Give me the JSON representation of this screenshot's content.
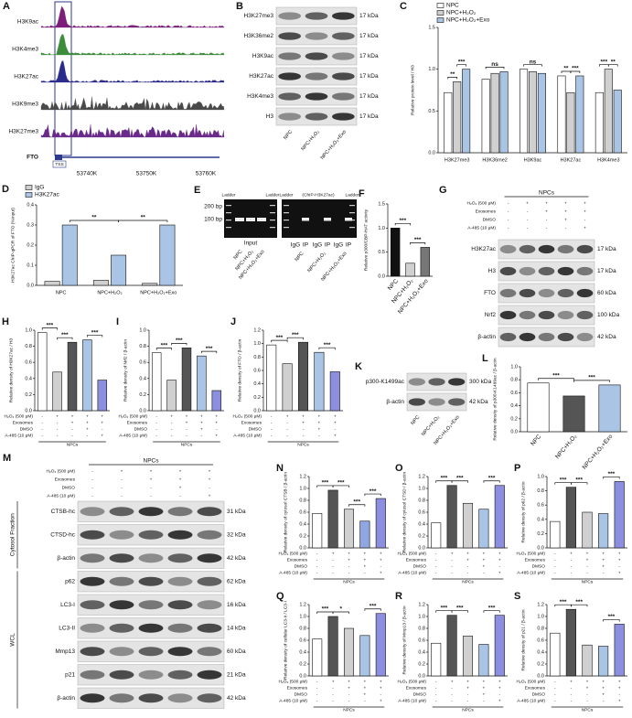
{
  "tracks": {
    "letter": "A",
    "tracks": [
      {
        "name": "H3K9ac",
        "color": "#7b1f7b"
      },
      {
        "name": "H3K4me3",
        "color": "#3c8c3c"
      },
      {
        "name": "H3K27ac",
        "color": "#2b2b8c"
      },
      {
        "name": "H3K9me3",
        "color": "#4a4a4a"
      },
      {
        "name": "H3K27me3",
        "color": "#6a2a8a"
      }
    ],
    "gene": "FTO",
    "tss": "TSS",
    "coords": [
      "53740K",
      "53750K",
      "53760K"
    ]
  },
  "blots": [
    {
      "letter": "B",
      "sections": [
        {
          "rows": [
            {
              "label": "H3K27me3",
              "kda": "17 kDa"
            },
            {
              "label": "H3K36me2",
              "kda": "17 kDa"
            },
            {
              "label": "H3K9ac",
              "kda": "17 kDa"
            },
            {
              "label": "H3K27ac",
              "kda": "17 kDa"
            },
            {
              "label": "H3K4me3",
              "kda": "17 kDa"
            },
            {
              "label": "H3",
              "kda": "17 kDa"
            }
          ]
        }
      ],
      "lanes": [
        "NPC",
        "NPC+H₂O₂",
        "NPC+H₂O₂+Exo"
      ]
    },
    {
      "letter": "G",
      "sections": [
        {
          "rows": [
            {
              "label": "H3K27ac",
              "kda": "17 kDa"
            },
            {
              "label": "H3",
              "kda": "17 kDa"
            },
            {
              "label": "FTO",
              "kda": "60 kDa"
            },
            {
              "label": "Nrf2",
              "kda": "100 kDa"
            },
            {
              "label": "β-actin",
              "kda": "42 kDa"
            }
          ]
        }
      ]
    },
    {
      "letter": "K",
      "sections": [
        {
          "rows": [
            {
              "label": "p300-K1499ac",
              "kda": "300 kDa"
            },
            {
              "label": "β-actin",
              "kda": "42 kDa"
            }
          ]
        }
      ],
      "lanes": [
        "NPC",
        "NPC+H₂O₂",
        "NPC+H₂O₂+Exo"
      ]
    },
    {
      "letter": "M",
      "sections": [
        {
          "label": "Cytosol Fraction",
          "rows": [
            {
              "label": "CTSB-hc",
              "kda": "31 kDa"
            },
            {
              "label": "CTSD-hc",
              "kda": "32 kDa"
            },
            {
              "label": "β-actin",
              "kda": "42 kDa"
            }
          ]
        },
        {
          "label": "WCL",
          "rows": [
            {
              "label": "p62",
              "kda": "62 kDa"
            },
            {
              "label": "LC3-I",
              "kda": "16 kDa"
            },
            {
              "label": "LC3-II",
              "kda": "14 kDa"
            },
            {
              "label": "Mmp13",
              "kda": "60 kDa"
            },
            {
              "label": "p21",
              "kda": "21 kDa"
            },
            {
              "label": "β-actin",
              "kda": "42 kDa"
            }
          ]
        }
      ]
    }
  ],
  "gel": {
    "letter": "E",
    "markers": [
      "200 bp",
      "100 bp"
    ],
    "ladder": "Ladder",
    "input": "Input",
    "chip": "(ChIP-H3K27ac)",
    "lanes": [
      "IgG",
      "IP",
      "IgG",
      "IP",
      "IgG",
      "IP"
    ],
    "groups": [
      "NPC",
      "NPC+H₂O₂",
      "NPC+H₂O₂+Exo"
    ]
  },
  "conditions": {
    "group": "NPCs",
    "rows": [
      {
        "label": "H₂O₂ (500 μM)",
        "signs": [
          "-",
          "+",
          "+",
          "+",
          "+"
        ]
      },
      {
        "label": "Exosomes",
        "signs": [
          "-",
          "-",
          "+",
          "+",
          "+"
        ]
      },
      {
        "label": "DMSO",
        "signs": [
          "-",
          "-",
          "-",
          "+",
          "-"
        ]
      },
      {
        "label": "A-485 (10 μM)",
        "signs": [
          "-",
          "-",
          "-",
          "-",
          "+"
        ]
      }
    ]
  },
  "chart_data": [
    {
      "type": "bar",
      "letter": "C",
      "ylabel": "Relative protein level / H3",
      "categories": [
        "H3K27me3",
        "H3K36me2",
        "H3K9ac",
        "H3K27ac",
        "H3K4me3"
      ],
      "series": [
        {
          "name": "NPC",
          "color": "#ffffff",
          "values": [
            0.72,
            0.88,
            1.0,
            0.92,
            0.72
          ]
        },
        {
          "name": "NPC+H₂O₂",
          "color": "#d0d0d0",
          "values": [
            0.85,
            0.95,
            0.97,
            0.72,
            1.0
          ]
        },
        {
          "name": "NPC+H₂O₂+Exo",
          "color": "#a9c4e4",
          "values": [
            1.0,
            0.97,
            0.95,
            0.92,
            0.75
          ]
        }
      ],
      "ylim": [
        0,
        1.5
      ],
      "yticks": [
        {
          "value": 0,
          "label": "0.0"
        },
        0.5,
        {
          "value": 1,
          "label": "1.0"
        },
        1.5
      ],
      "annotations": [
        "**",
        "***",
        "ns",
        "ns",
        "**",
        "***",
        "***",
        "**"
      ]
    },
    {
      "type": "bar",
      "letter": "D",
      "ylabel": "H3K27ac ChIP-qPCR of FTO (%Input)",
      "categories": [
        "NPC",
        "NPC+H₂O₂",
        "NPC+H₂O₂+Exo"
      ],
      "series": [
        {
          "name": "IgG",
          "color": "#d0d0d0",
          "values": [
            0.02,
            0.025,
            0.01
          ]
        },
        {
          "name": "H3K27ac",
          "color": "#a9c4e4",
          "values": [
            0.3,
            0.15,
            0.3
          ]
        }
      ],
      "ylim": [
        0,
        0.4
      ],
      "yticks": [
        {
          "value": 0,
          "label": "0.0"
        },
        0.1,
        0.2,
        0.3,
        0.4
      ],
      "annotations": [
        "**",
        "**"
      ]
    },
    {
      "type": "bar",
      "letter": "F",
      "ylabel": "Relative p300/CBP-HAT activity",
      "categories": [
        "NPC",
        "NPC+H₂O₂",
        "NPC+H₂O₂+Exo"
      ],
      "values": [
        1.0,
        0.27,
        0.6
      ],
      "colors": [
        "#111111",
        "#d0d0d0",
        "#777777"
      ],
      "ylim": [
        0,
        1.5
      ],
      "yticks": [
        {
          "value": 0,
          "label": "0.0"
        },
        0.5,
        {
          "value": 1,
          "label": "1.0"
        },
        1.5
      ],
      "annotations": [
        "***",
        "***"
      ]
    },
    {
      "type": "bar",
      "letter": "H",
      "ylabel": "Relative density of H3K27ac / H3",
      "values": [
        0.97,
        0.48,
        0.85,
        0.88,
        0.38
      ],
      "colors": [
        "#ffffff",
        "#d0d0d0",
        "#555555",
        "#a9c4e4",
        "#8c8ee0"
      ],
      "ylim": [
        0,
        1.0
      ],
      "yticks": [
        {
          "value": 0,
          "label": "0.0"
        },
        0.2,
        0.4,
        0.6,
        0.8,
        {
          "value": 1,
          "label": "1.0"
        }
      ],
      "annotations": [
        "***",
        "***",
        "***"
      ]
    },
    {
      "type": "bar",
      "letter": "I",
      "ylabel": "Relative density of Nrf2 / β-actin",
      "values": [
        0.72,
        0.38,
        0.78,
        0.68,
        0.25
      ],
      "colors": [
        "#ffffff",
        "#d0d0d0",
        "#555555",
        "#a9c4e4",
        "#8c8ee0"
      ],
      "ylim": [
        0,
        1.0
      ],
      "yticks": [
        {
          "value": 0,
          "label": "0.0"
        },
        0.2,
        0.4,
        0.6,
        0.8,
        {
          "value": 1,
          "label": "1.0"
        }
      ],
      "annotations": [
        "***",
        "***",
        "***"
      ]
    },
    {
      "type": "bar",
      "letter": "J",
      "ylabel": "Relative density of FTO / β-actin",
      "values": [
        0.98,
        0.7,
        1.02,
        0.87,
        0.58
      ],
      "colors": [
        "#ffffff",
        "#d0d0d0",
        "#555555",
        "#a9c4e4",
        "#8c8ee0"
      ],
      "ylim": [
        0,
        1.2
      ],
      "yticks": [
        {
          "value": 0,
          "label": "0.0"
        },
        0.2,
        0.4,
        0.6,
        0.8,
        {
          "value": 1,
          "label": "1.0"
        },
        1.2
      ],
      "annotations": [
        "***",
        "***",
        "***"
      ]
    },
    {
      "type": "bar",
      "letter": "L",
      "ylabel": "Relative density of p300-K1499ac / β-actin",
      "categories": [
        "NPC",
        "NPC+H₂O₂",
        "NPC+H₂O₂+Exo"
      ],
      "values": [
        0.75,
        0.55,
        0.72
      ],
      "colors": [
        "#ffffff",
        "#555555",
        "#a9c4e4"
      ],
      "ylim": [
        0,
        1.0
      ],
      "yticks": [
        {
          "value": 0,
          "label": "0.0"
        },
        0.2,
        0.4,
        0.6,
        0.8,
        {
          "value": 1,
          "label": "1.0"
        }
      ],
      "annotations": [
        "***",
        "***"
      ]
    },
    {
      "type": "bar",
      "letter": "N",
      "ylabel": "Relative density of cytosol CTSB / β-actin",
      "values": [
        0.58,
        0.97,
        0.65,
        0.45,
        0.83
      ],
      "colors": [
        "#ffffff",
        "#555555",
        "#d0d0d0",
        "#8fa6e0",
        "#8c8ee0"
      ],
      "ylim": [
        0,
        1.2
      ],
      "yticks": [
        {
          "value": 0,
          "label": "0.0"
        },
        0.2,
        0.4,
        0.6,
        0.8,
        {
          "value": 1,
          "label": "1.0"
        },
        1.2
      ],
      "annotations": [
        "***",
        "***",
        "***",
        "***"
      ]
    },
    {
      "type": "bar",
      "letter": "O",
      "ylabel": "Relative density of cytosol CTSD / β-actin",
      "values": [
        0.42,
        1.05,
        0.75,
        0.65,
        1.05
      ],
      "colors": [
        "#ffffff",
        "#555555",
        "#d0d0d0",
        "#a9c4e4",
        "#8c8ee0"
      ],
      "ylim": [
        0,
        1.2
      ],
      "yticks": [
        {
          "value": 0,
          "label": "0.0"
        },
        0.2,
        0.4,
        0.6,
        0.8,
        {
          "value": 1,
          "label": "1.0"
        },
        1.2
      ],
      "annotations": [
        "***",
        "***",
        "***"
      ]
    },
    {
      "type": "bar",
      "letter": "P",
      "ylabel": "Relative density of p62 / β-actin",
      "values": [
        0.37,
        0.85,
        0.5,
        0.48,
        0.93
      ],
      "colors": [
        "#ffffff",
        "#555555",
        "#d0d0d0",
        "#a9c4e4",
        "#8c8ee0"
      ],
      "ylim": [
        0,
        1.0
      ],
      "yticks": [
        {
          "value": 0,
          "label": "0.0"
        },
        0.2,
        0.4,
        0.6,
        0.8,
        {
          "value": 1,
          "label": "1.0"
        }
      ],
      "annotations": [
        "***",
        "***",
        "***"
      ]
    },
    {
      "type": "bar",
      "letter": "Q",
      "ylabel": "Relative density of cellular LC3-II / LC3-I",
      "values": [
        0.62,
        1.0,
        0.8,
        0.68,
        1.05
      ],
      "colors": [
        "#ffffff",
        "#555555",
        "#d0d0d0",
        "#a9c4e4",
        "#8c8ee0"
      ],
      "ylim": [
        0,
        1.2
      ],
      "yticks": [
        {
          "value": 0,
          "label": "0.0"
        },
        0.2,
        0.4,
        0.6,
        0.8,
        {
          "value": 1,
          "label": "1.0"
        },
        1.2
      ],
      "annotations": [
        "***",
        "*",
        "***"
      ]
    },
    {
      "type": "bar",
      "letter": "R",
      "ylabel": "Relative density of Mmp13 / β-actin",
      "values": [
        0.55,
        1.02,
        0.67,
        0.53,
        1.02
      ],
      "colors": [
        "#ffffff",
        "#555555",
        "#d0d0d0",
        "#a9c4e4",
        "#8c8ee0"
      ],
      "ylim": [
        0,
        1.2
      ],
      "yticks": [
        {
          "value": 0,
          "label": "0.0"
        },
        0.2,
        0.4,
        0.6,
        0.8,
        {
          "value": 1,
          "label": "1.0"
        },
        1.2
      ],
      "annotations": [
        "***",
        "***",
        "***"
      ]
    },
    {
      "type": "bar",
      "letter": "S",
      "ylabel": "Relative density of p21 / β-actin",
      "values": [
        0.72,
        1.12,
        0.52,
        0.5,
        0.87
      ],
      "colors": [
        "#ffffff",
        "#555555",
        "#d0d0d0",
        "#a9c4e4",
        "#8c8ee0"
      ],
      "ylim": [
        0,
        1.2
      ],
      "yticks": [
        {
          "value": 0,
          "label": "0.0"
        },
        0.2,
        0.4,
        0.6,
        0.8,
        {
          "value": 1,
          "label": "1.0"
        },
        1.2
      ],
      "annotations": [
        "***",
        "***",
        "***"
      ]
    }
  ]
}
